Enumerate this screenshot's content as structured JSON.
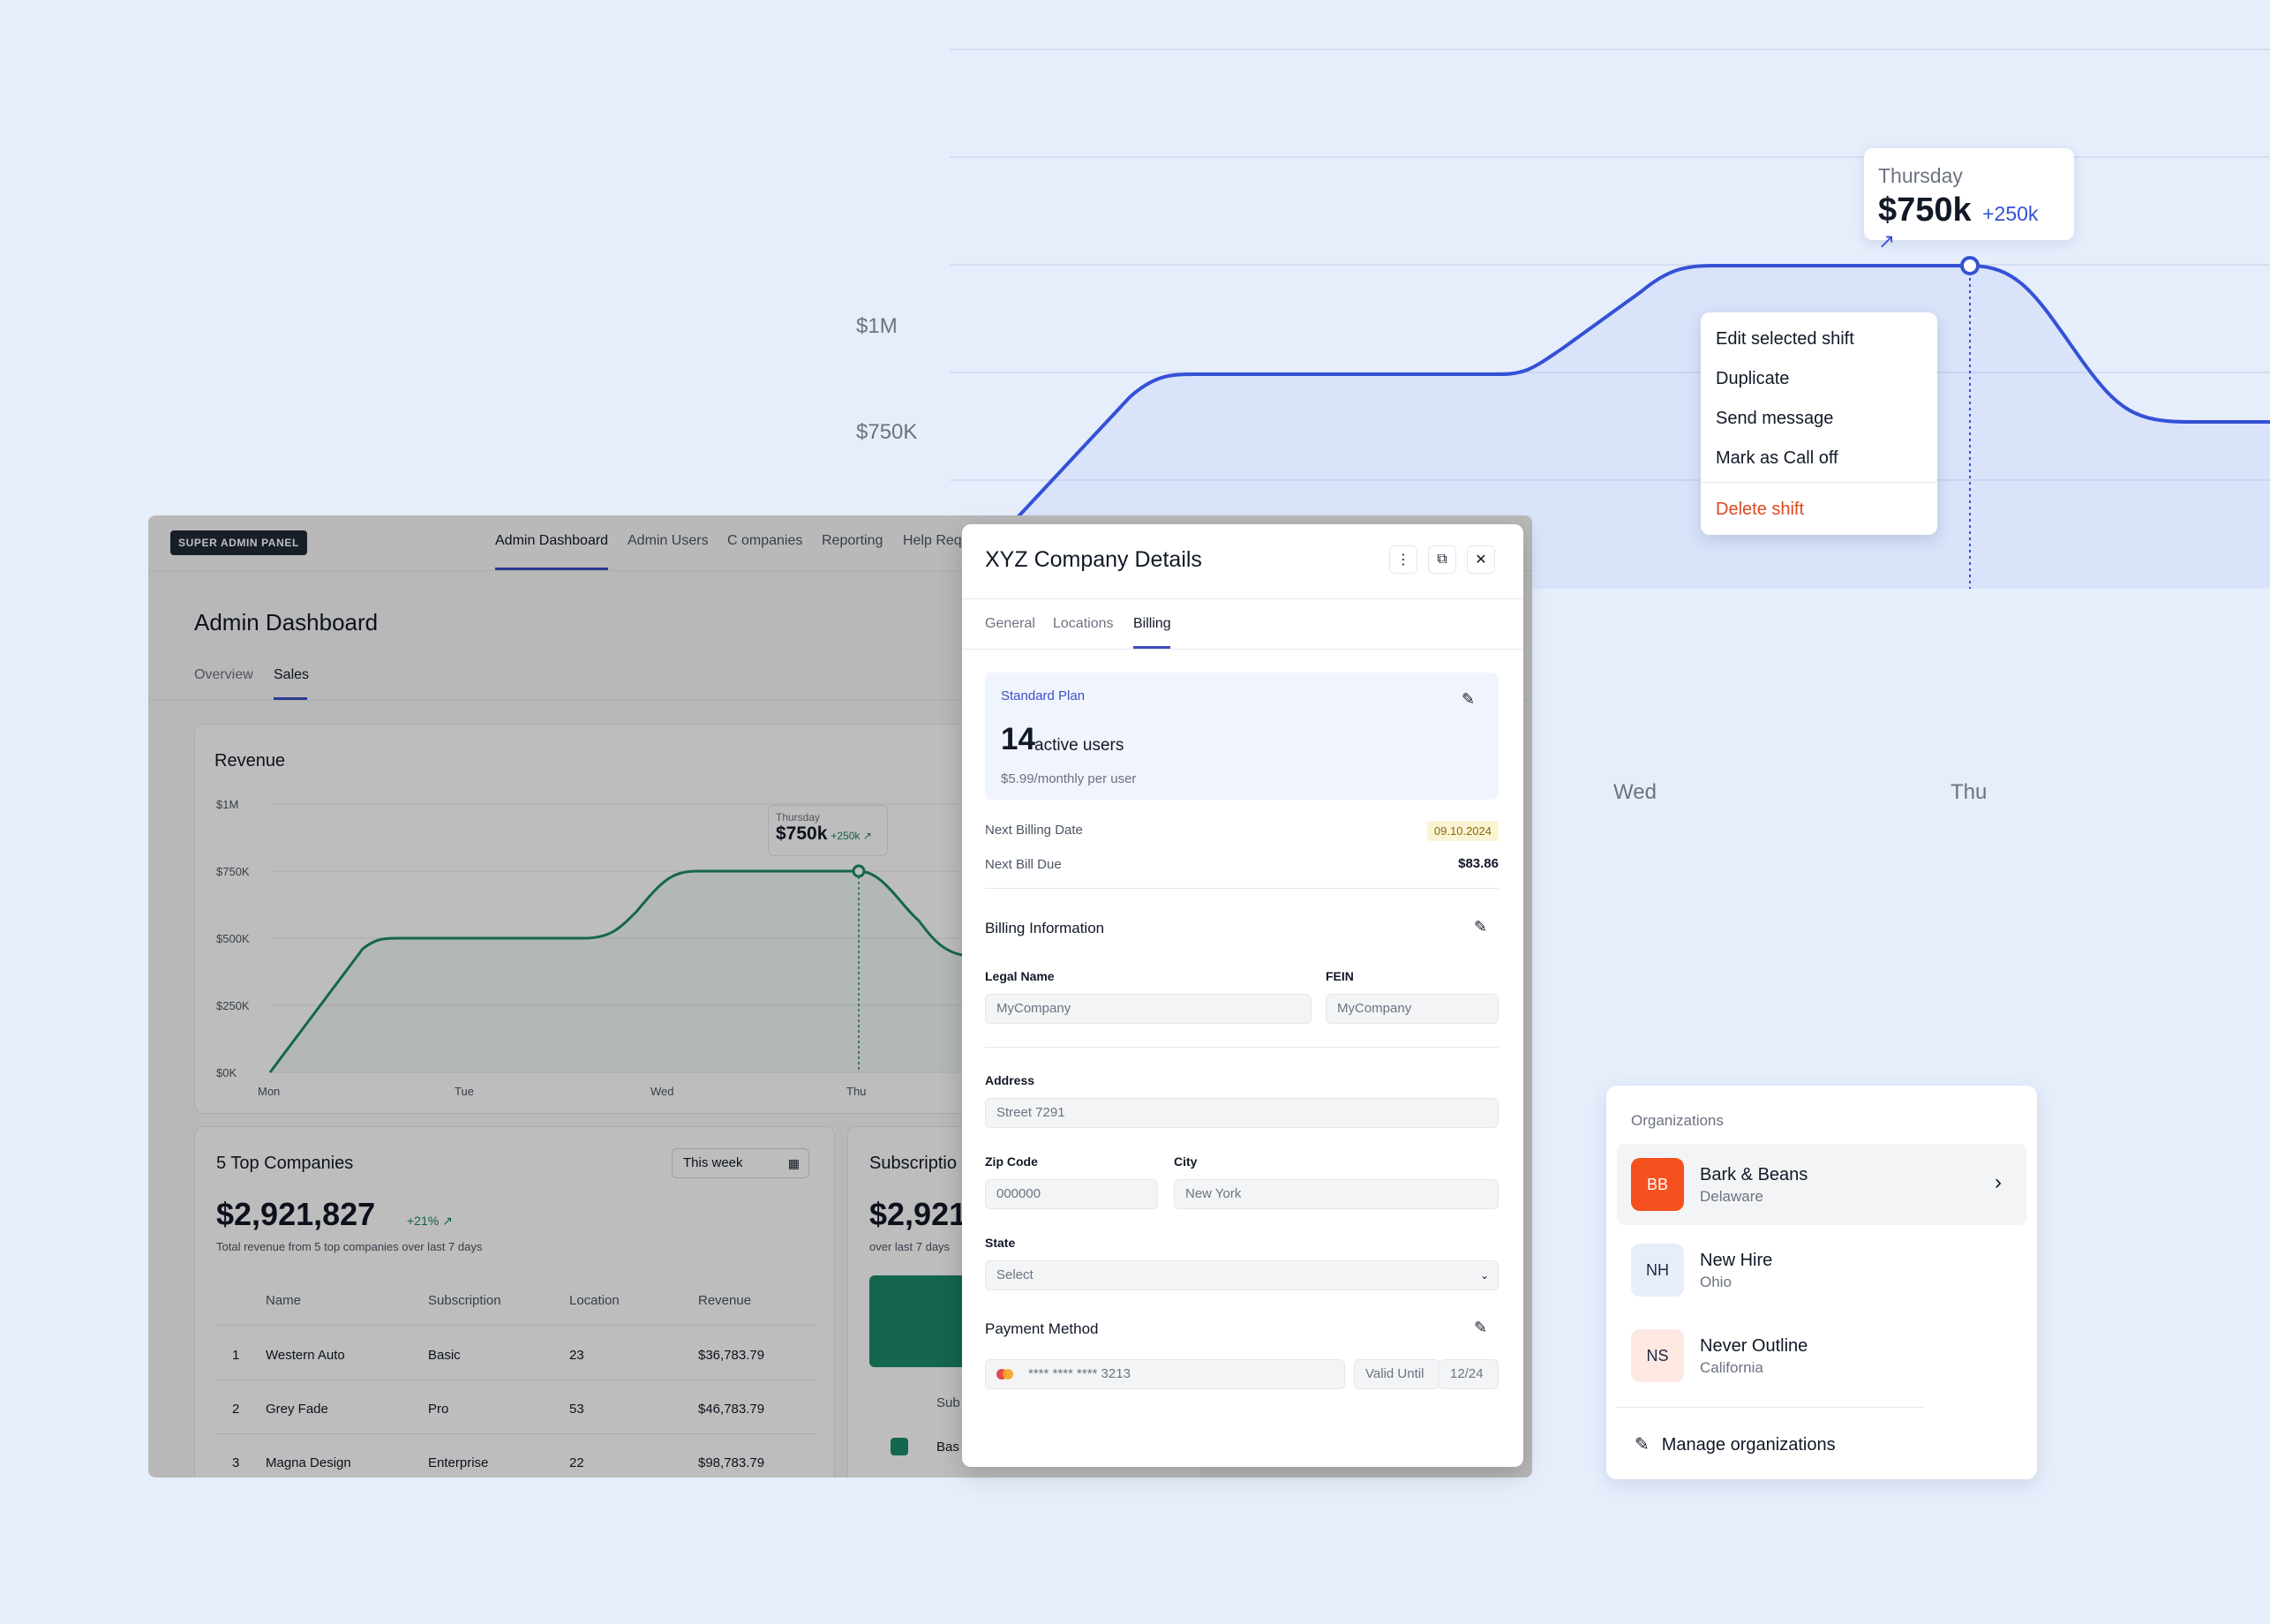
{
  "bg_chart": {
    "y_labels": [
      "$1M",
      "$750K"
    ],
    "x_labels": [
      "Wed",
      "Thu"
    ],
    "line_color": "#3551d6",
    "tooltip": {
      "day": "Thursday",
      "value": "$750k",
      "delta": "+250k"
    }
  },
  "context_menu": {
    "items": [
      "Edit selected shift",
      "Duplicate",
      "Send message",
      "Mark as Call off"
    ],
    "danger_item": "Delete shift"
  },
  "admin": {
    "badge": "SUPER ADMIN PANEL",
    "nav": [
      "Admin Dashboard",
      "Admin Users",
      "C ompanies",
      "Reporting",
      "Help Req"
    ],
    "title": "Admin Dashboard",
    "tabs": [
      "Overview",
      "Sales"
    ],
    "revenue": {
      "title": "Revenue",
      "tooltip": {
        "day": "Thursday",
        "value": "$750k",
        "delta": "+250k"
      }
    },
    "top_companies": {
      "title": "5 Top Companies",
      "range": "This week",
      "amount": "$2,921,827",
      "delta": "+21%",
      "subtitle": "Total revenue from 5 top companies over last 7 days",
      "columns": [
        "Name",
        "Subscription",
        "Location",
        "Revenue"
      ],
      "rows": [
        [
          "1",
          "Western Auto",
          "Basic",
          "23",
          "$36,783.79"
        ],
        [
          "2",
          "Grey Fade",
          "Pro",
          "53",
          "$46,783.79"
        ],
        [
          "3",
          "Magna Design",
          "Enterprise",
          "22",
          "$98,783.79"
        ]
      ]
    },
    "subscriptions": {
      "title": "Subscriptio",
      "amount": "$2,921,",
      "subtitle": "over last 7 days",
      "col": "Sub",
      "row": "Bas"
    }
  },
  "chart_data": [
    {
      "type": "line",
      "title": "",
      "x": [
        "Wed",
        "Thu"
      ],
      "series": [
        {
          "values": [
            500000,
            750000
          ]
        }
      ],
      "y_ticks": [
        "$750K",
        "$1M"
      ],
      "ylim": [
        0,
        1000000
      ],
      "annotation": {
        "day": "Thursday",
        "value": "$750k",
        "delta": "+250k"
      }
    },
    {
      "type": "line",
      "title": "Revenue",
      "x": [
        "Mon",
        "Tue",
        "Wed",
        "Thu"
      ],
      "series": [
        {
          "values": [
            0,
            500000,
            500000,
            750000
          ]
        }
      ],
      "y_ticks": [
        "$0K",
        "$250K",
        "$500K",
        "$750K",
        "$1M"
      ],
      "ylim": [
        0,
        1000000
      ],
      "line_color": "#1b8a6b",
      "annotation": {
        "day": "Thursday",
        "value": "$750k",
        "delta": "+250k"
      }
    }
  ],
  "modal": {
    "title": "XYZ Company Details",
    "tabs": [
      "General",
      "Locations",
      "Billing"
    ],
    "plan": {
      "name": "Standard Plan",
      "count": "14",
      "users_label": "active users",
      "price": "$5.99/monthly per user"
    },
    "next_billing_label": "Next Billing Date",
    "next_billing_value": "09.10.2024",
    "next_bill_due_label": "Next Bill Due",
    "next_bill_due_value": "$83.86",
    "billing_info_title": "Billing Information",
    "legal_name_label": "Legal Name",
    "legal_name_placeholder": "MyCompany",
    "fein_label": "FEIN",
    "fein_placeholder": "MyCompany",
    "address_label": "Address",
    "address_placeholder": "Street 7291",
    "zip_label": "Zip Code",
    "zip_placeholder": "000000",
    "city_label": "City",
    "city_placeholder": "New York",
    "state_label": "State",
    "state_value": "Select",
    "payment_title": "Payment Method",
    "card_number": "**** **** **** 3213",
    "valid_until_label": "Valid Until",
    "valid_until_value": "12/24"
  },
  "organizations": {
    "title": "Organizations",
    "items": [
      {
        "initials": "BB",
        "name": "Bark & Beans",
        "sub": "Delaware",
        "bg": "#f4511e",
        "fg": "#ffffff"
      },
      {
        "initials": "NH",
        "name": "New Hire",
        "sub": "Ohio",
        "bg": "#e8eef9",
        "fg": "#1f2a44"
      },
      {
        "initials": "NS",
        "name": "Never Outline",
        "sub": "California",
        "bg": "#fde8e2",
        "fg": "#1f2a44"
      }
    ],
    "manage_label": "Manage organizations"
  }
}
